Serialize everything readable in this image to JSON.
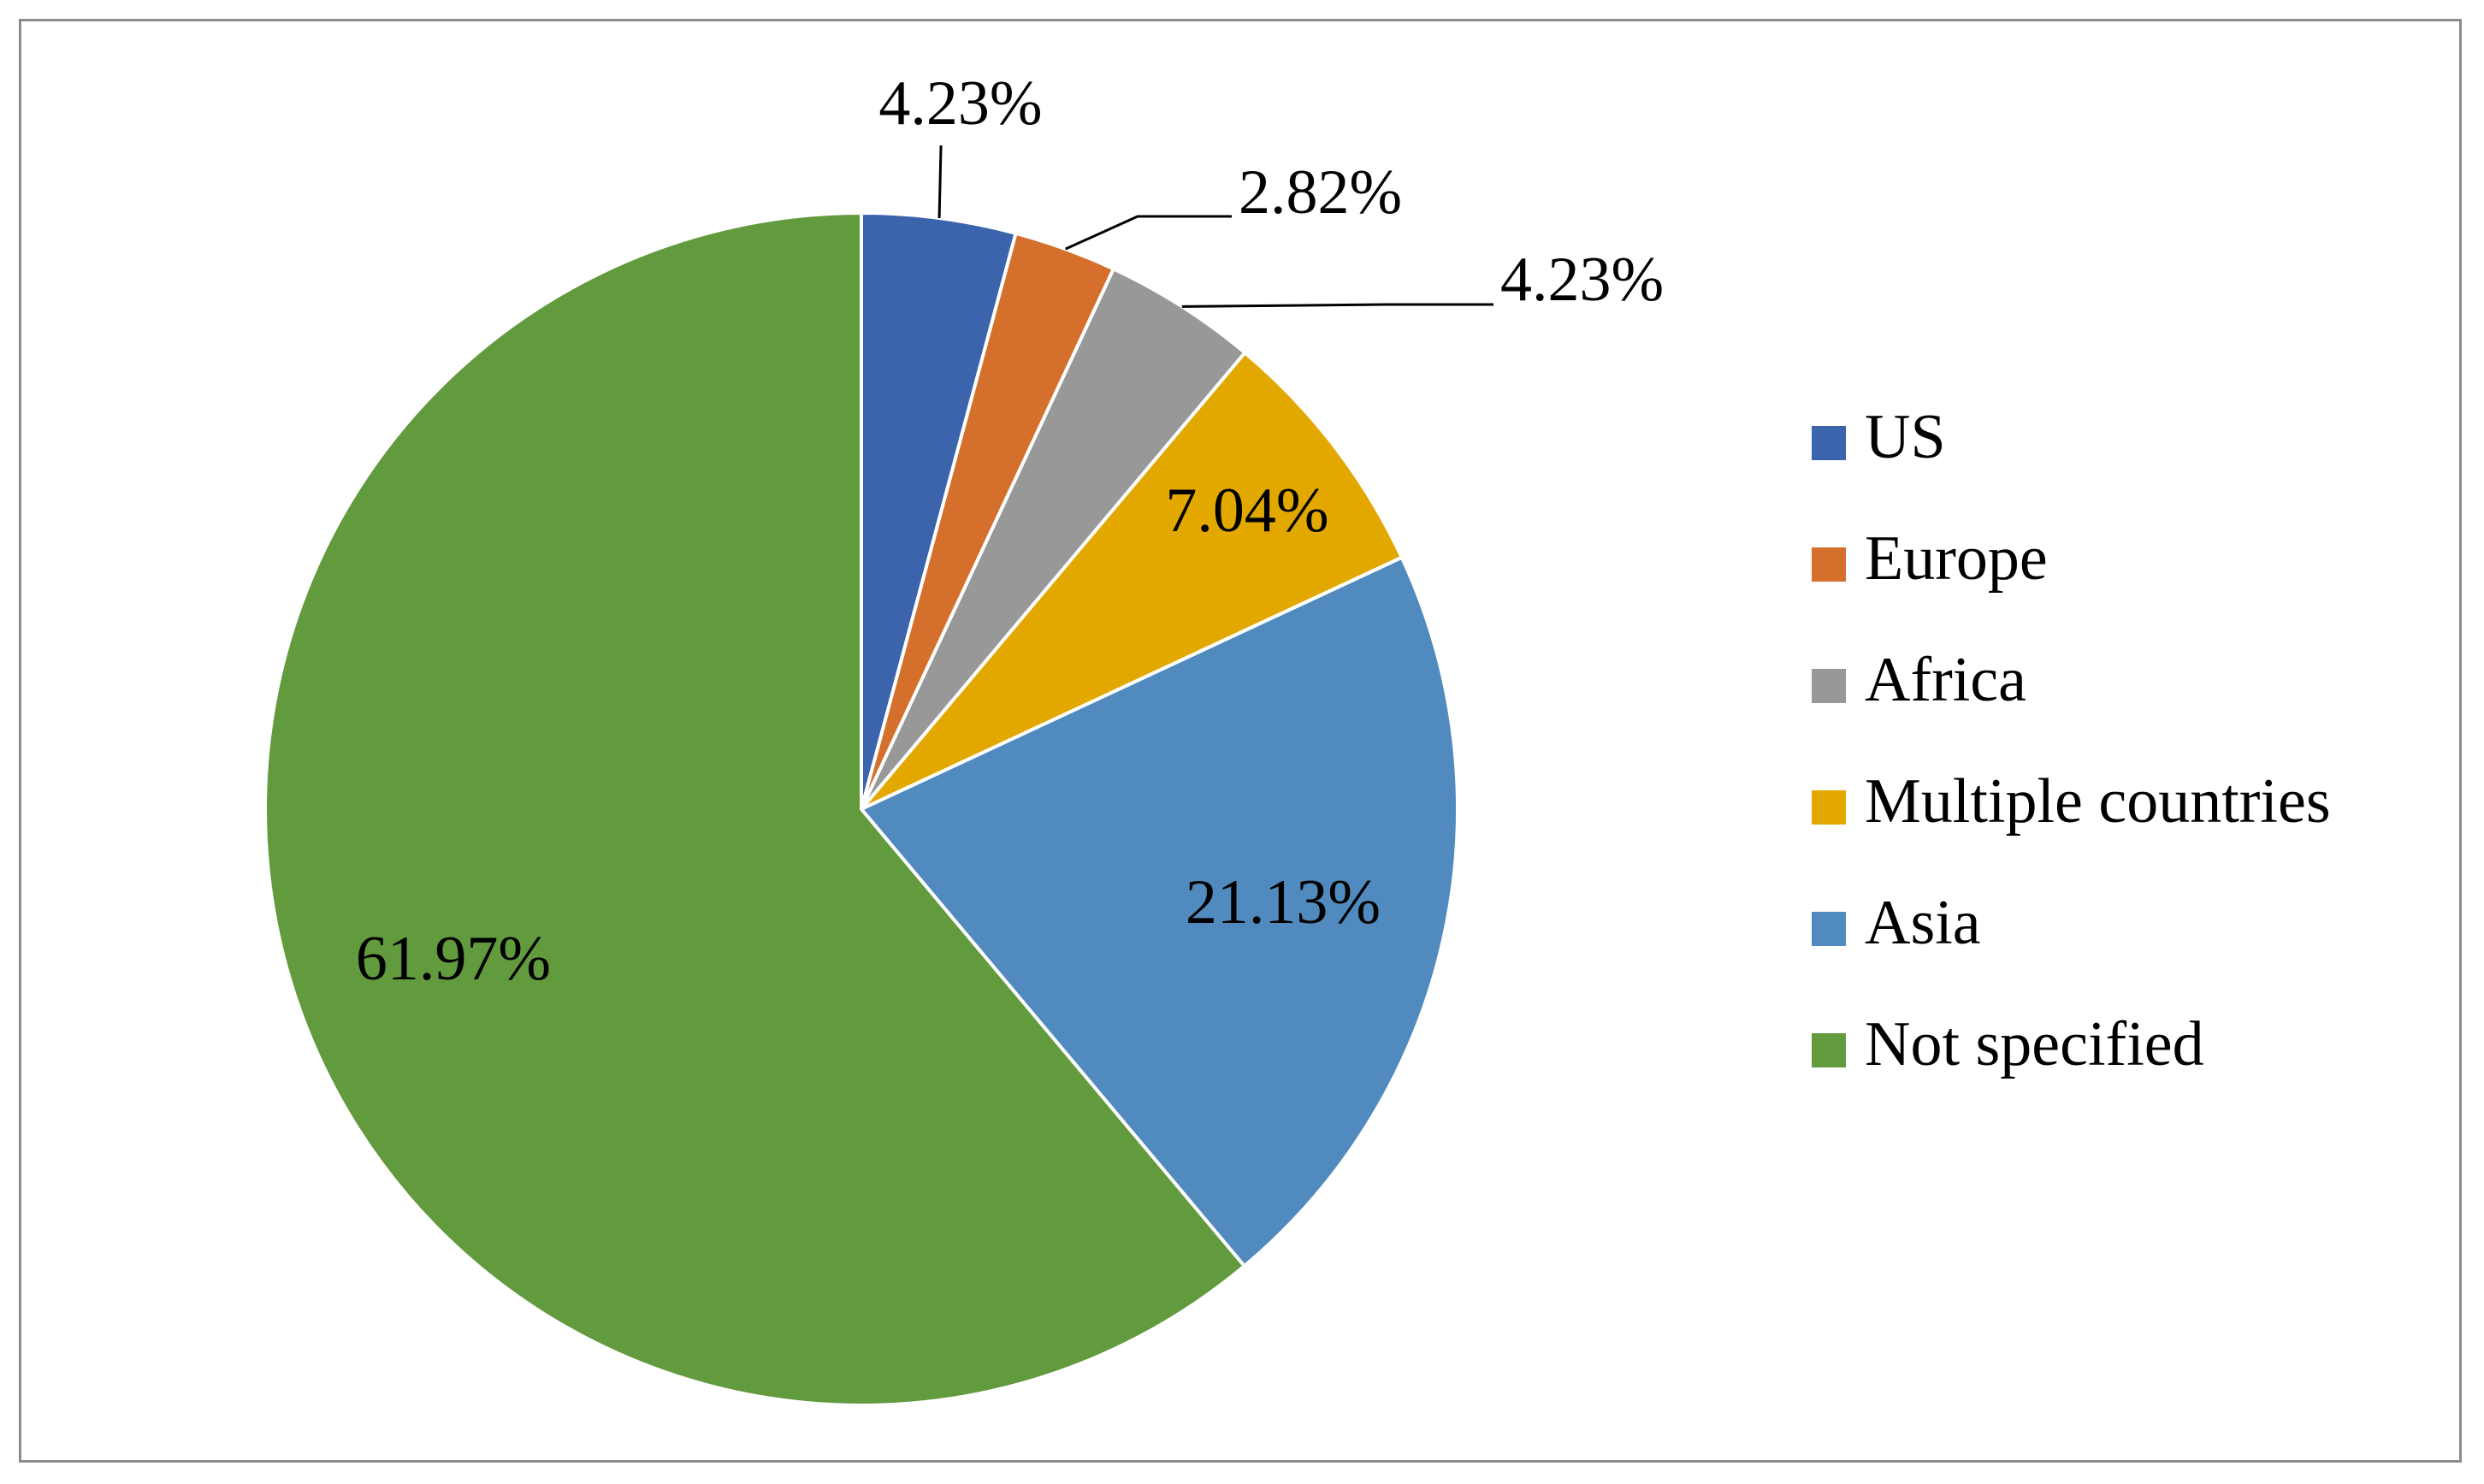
{
  "chart_data": {
    "type": "pie",
    "start_angle_deg": 0,
    "direction": "clockwise",
    "legend_position": "right",
    "slices": [
      {
        "name": "US",
        "value": 4.23,
        "label": "4.23%",
        "color": "#3b64ad",
        "label_mode": "leader"
      },
      {
        "name": "Europe",
        "value": 2.82,
        "label": "2.82%",
        "color": "#d46f2c",
        "label_mode": "leader"
      },
      {
        "name": "Africa",
        "value": 4.23,
        "label": "4.23%",
        "color": "#989898",
        "label_mode": "leader"
      },
      {
        "name": "Multiple countries",
        "value": 7.04,
        "label": "7.04%",
        "color": "#e3a800",
        "label_mode": "inside"
      },
      {
        "name": "Asia",
        "value": 21.13,
        "label": "21.13%",
        "color": "#508abe",
        "label_mode": "inside"
      },
      {
        "name": "Not specified",
        "value": 61.97,
        "label": "61.97%",
        "color": "#629a3e",
        "label_mode": "inside"
      }
    ]
  }
}
